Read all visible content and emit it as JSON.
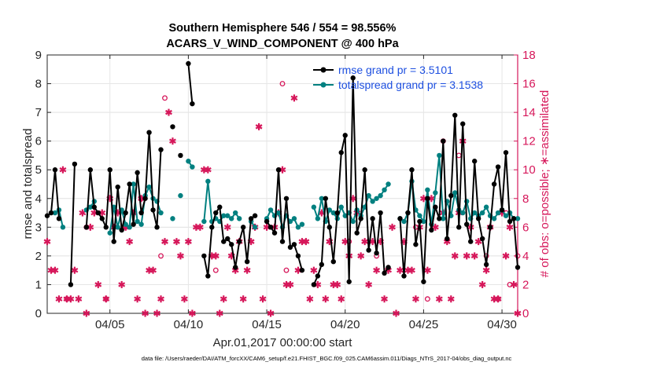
{
  "chart_data": {
    "type": "line",
    "title": [
      "Southern Hemisphere 546 / 554 = 98.556%",
      "ACARS_V_WIND_COMPONENT @ 400 hPa"
    ],
    "xlabel": "Apr.01,2017 00:00:00 start",
    "ylabel": "rmse and totalspread",
    "ylabel_right": "# of obs: o=possible; ∗=assimilated",
    "xlim": [
      1,
      31
    ],
    "ylim": [
      0,
      9
    ],
    "ylim_right": [
      0,
      18
    ],
    "x_ticks": [
      5,
      10,
      15,
      20,
      25,
      30
    ],
    "x_tick_labels": [
      "04/05",
      "04/10",
      "04/15",
      "04/20",
      "04/25",
      "04/30"
    ],
    "y_ticks": [
      0,
      1,
      2,
      3,
      4,
      5,
      6,
      7,
      8,
      9
    ],
    "y_tick_labels": [
      "0",
      "1",
      "2",
      "3",
      "4",
      "5",
      "6",
      "7",
      "8",
      "9"
    ],
    "y_ticks_right": [
      0,
      2,
      4,
      6,
      8,
      10,
      12,
      14,
      16,
      18
    ],
    "y_tick_labels_right": [
      "0",
      "2",
      "4",
      "6",
      "8",
      "10",
      "12",
      "14",
      "16",
      "18"
    ],
    "grid": true,
    "legend_position": "top-right",
    "legend": [
      "rmse grand pr = 3.5101",
      "totalspread grand pr = 3.1538"
    ],
    "colors": {
      "rmse": "#000000",
      "totalspread": "#008080",
      "obs": "#d6175a",
      "legend_text": "#1d4fe0"
    },
    "series": [
      {
        "name": "rmse",
        "x": [
          1.0,
          1.25,
          1.5,
          1.75,
          2.5,
          2.75,
          3.5,
          3.75,
          4.0,
          4.25,
          4.5,
          4.75,
          5.0,
          5.25,
          5.5,
          5.75,
          6.0,
          6.25,
          6.5,
          6.75,
          7.0,
          7.25,
          7.5,
          7.75,
          8.0,
          8.25,
          9.0,
          9.5,
          10.0,
          10.25,
          11.0,
          11.25,
          11.5,
          11.75,
          12.0,
          12.25,
          12.5,
          12.75,
          13.0,
          13.25,
          13.5,
          13.75,
          14.0,
          14.25,
          15.0,
          15.25,
          15.5,
          15.75,
          16.0,
          16.25,
          16.5,
          16.75,
          17.0,
          17.25,
          18.0,
          18.25,
          18.5,
          18.75,
          19.0,
          19.25,
          19.5,
          19.75,
          20.0,
          20.25,
          20.5,
          20.75,
          21.0,
          21.25,
          21.5,
          21.75,
          22.0,
          22.25,
          22.5,
          22.75,
          23.5,
          23.75,
          24.0,
          24.25,
          24.5,
          24.75,
          25.0,
          25.25,
          25.5,
          25.75,
          26.0,
          26.25,
          26.5,
          26.75,
          27.0,
          27.25,
          27.5,
          27.75,
          28.0,
          28.25,
          28.5,
          28.75,
          29.0,
          29.25,
          29.5,
          29.75,
          30.0,
          30.25,
          30.5,
          30.75,
          31.0
        ],
        "values": [
          3.4,
          3.5,
          5.0,
          3.3,
          1.0,
          5.2,
          3.0,
          5.0,
          3.7,
          3.5,
          3.3,
          3.0,
          5.0,
          2.5,
          4.4,
          2.9,
          3.5,
          4.5,
          3.1,
          4.9,
          3.5,
          4.0,
          6.3,
          3.6,
          3.0,
          5.7,
          6.5,
          5.5,
          8.7,
          7.3,
          2.0,
          1.3,
          3.0,
          3.5,
          3.7,
          2.5,
          2.6,
          2.4,
          1.6,
          2.5,
          3.0,
          1.8,
          3.3,
          3.4,
          3.2,
          3.0,
          2.8,
          5.0,
          2.5,
          4.0,
          2.3,
          2.4,
          2.0,
          1.5,
          1.0,
          1.3,
          1.7,
          4.0,
          3.0,
          1.8,
          3.5,
          5.6,
          6.2,
          1.1,
          8.2,
          2.8,
          3.3,
          5.0,
          2.2,
          3.3,
          2.1,
          3.5,
          1.4,
          1.6,
          3.3,
          1.3,
          3.5,
          5.0,
          2.4,
          3.2,
          1.1,
          4.0,
          2.9,
          3.7,
          3.3,
          6.0,
          2.6,
          4.1,
          6.9,
          3.0,
          6.6,
          3.1,
          2.5,
          5.3,
          3.3,
          2.6,
          1.7,
          3.0,
          4.5,
          5.1,
          3.6,
          5.6,
          3.2,
          3.3,
          1.6
        ]
      },
      {
        "name": "totalspread",
        "x": [
          1.5,
          1.75,
          2.0,
          3.5,
          3.75,
          4.0,
          5.0,
          5.25,
          5.5,
          5.75,
          6.0,
          6.25,
          6.5,
          6.75,
          7.0,
          7.25,
          7.5,
          7.75,
          8.0,
          8.25,
          9.0,
          9.5,
          10.0,
          10.25,
          11.0,
          11.25,
          11.5,
          11.75,
          12.0,
          12.25,
          12.5,
          12.75,
          13.0,
          13.25,
          14.0,
          14.25,
          15.0,
          15.25,
          15.5,
          15.75,
          16.0,
          16.25,
          16.5,
          16.75,
          17.0,
          17.25,
          18.0,
          18.25,
          18.5,
          18.75,
          19.0,
          19.25,
          19.5,
          19.75,
          20.0,
          20.25,
          20.5,
          20.75,
          21.0,
          21.25,
          21.5,
          21.75,
          22.0,
          22.25,
          22.5,
          22.75,
          23.5,
          23.75,
          24.0,
          24.25,
          24.5,
          24.75,
          25.0,
          25.25,
          25.5,
          25.75,
          26.0,
          26.25,
          26.5,
          26.75,
          27.0,
          27.25,
          27.5,
          27.75,
          28.0,
          28.25,
          28.5,
          28.75,
          29.0,
          29.25,
          29.5,
          29.75,
          30.0,
          30.25,
          30.5,
          30.75,
          31.0
        ],
        "values": [
          3.5,
          3.6,
          3.0,
          3.6,
          3.7,
          3.9,
          2.8,
          3.7,
          3.0,
          3.6,
          3.1,
          3.0,
          4.5,
          3.2,
          3.1,
          4.1,
          4.4,
          4.0,
          3.9,
          3.5,
          3.3,
          4.1,
          5.3,
          5.1,
          3.2,
          4.6,
          3.2,
          3.3,
          3.2,
          3.4,
          3.4,
          3.3,
          3.5,
          3.3,
          3.2,
          3.0,
          3.3,
          3.6,
          3.4,
          3.5,
          3.0,
          3.4,
          3.2,
          3.3,
          3.0,
          3.1,
          3.7,
          3.3,
          4.0,
          3.2,
          3.6,
          3.5,
          3.3,
          3.7,
          3.4,
          3.5,
          3.2,
          3.6,
          3.4,
          3.7,
          4.1,
          3.9,
          4.0,
          4.1,
          4.3,
          4.5,
          3.3,
          3.2,
          3.5,
          4.6,
          3.6,
          3.4,
          3.2,
          4.3,
          3.1,
          4.2,
          5.5,
          3.3,
          3.9,
          3.4,
          4.2,
          3.6,
          3.5,
          3.9,
          3.3,
          3.5,
          3.4,
          3.5,
          3.7,
          3.4,
          3.3,
          3.5,
          3.6,
          3.4,
          3.5,
          3.3,
          3.3
        ]
      },
      {
        "name": "obs_assimilated",
        "x": [
          1.0,
          1.25,
          1.5,
          1.75,
          2.0,
          2.25,
          2.5,
          2.75,
          3.0,
          3.25,
          3.5,
          3.75,
          4.0,
          4.25,
          4.5,
          4.75,
          5.0,
          5.25,
          5.5,
          5.75,
          6.0,
          6.25,
          6.5,
          6.75,
          7.0,
          7.25,
          7.5,
          7.75,
          8.0,
          8.25,
          8.5,
          8.75,
          9.0,
          9.25,
          9.5,
          9.75,
          10.0,
          10.25,
          10.5,
          10.75,
          11.0,
          11.25,
          11.5,
          11.75,
          12.0,
          12.25,
          12.5,
          12.75,
          13.0,
          13.25,
          13.5,
          13.75,
          14.0,
          14.25,
          14.5,
          14.75,
          15.0,
          15.25,
          15.5,
          15.75,
          16.0,
          16.25,
          16.5,
          16.75,
          17.0,
          17.25,
          17.5,
          17.75,
          18.0,
          18.25,
          18.5,
          18.75,
          19.0,
          19.25,
          19.5,
          19.75,
          20.0,
          20.25,
          20.5,
          20.75,
          21.0,
          21.25,
          21.5,
          21.75,
          22.0,
          22.25,
          22.5,
          22.75,
          23.0,
          23.25,
          23.5,
          23.75,
          24.0,
          24.25,
          24.5,
          24.75,
          25.0,
          25.25,
          25.5,
          25.75,
          26.0,
          26.25,
          26.5,
          26.75,
          27.0,
          27.25,
          27.5,
          27.75,
          28.0,
          28.25,
          28.5,
          28.75,
          29.0,
          29.25,
          29.5,
          29.75,
          30.0,
          30.25,
          30.5,
          30.75,
          31.0
        ],
        "values": [
          5,
          3,
          3,
          1,
          10,
          1,
          1,
          3,
          1,
          7,
          0,
          6,
          7,
          2,
          7,
          1,
          8,
          6,
          7,
          2,
          6,
          5,
          7,
          1,
          8,
          0,
          3,
          3,
          0,
          1,
          5,
          14,
          12,
          5,
          4,
          1,
          5,
          0,
          6,
          6,
          10,
          10,
          4,
          4,
          0,
          1,
          6,
          4,
          3,
          5,
          1,
          3,
          5,
          6,
          13,
          1,
          6,
          0,
          6,
          7,
          10,
          2,
          2,
          15,
          3,
          5,
          5,
          1,
          3,
          2,
          7,
          1,
          5,
          2,
          2,
          1,
          5,
          4,
          8,
          7,
          4,
          5,
          2,
          5,
          3,
          5,
          1,
          3,
          6,
          0,
          3,
          5,
          3,
          3,
          1,
          6,
          8,
          3,
          8,
          6,
          1,
          7,
          5,
          1,
          4,
          7,
          12,
          4,
          6,
          4,
          5,
          2,
          3,
          6,
          1,
          1,
          7,
          4,
          6,
          2,
          0
        ]
      },
      {
        "name": "obs_possible",
        "x": [
          2.25,
          3.5,
          4.75,
          6.0,
          7.0,
          8.25,
          8.5,
          11.75,
          16.0,
          16.25,
          20.25,
          22.0,
          24.5,
          25.25,
          26.25,
          27.25,
          29.0,
          29.25,
          29.75,
          30.25,
          30.5,
          31.0
        ],
        "values": [
          1,
          6,
          1,
          6,
          8,
          4,
          15,
          3,
          16,
          3,
          5,
          4,
          6,
          1,
          12,
          11,
          4,
          6,
          1,
          7,
          2,
          4
        ]
      }
    ]
  },
  "footnote": "data file: /Users/raeder/DAI/ATM_forcXX/CAM6_setup/f.e21.FHIST_BGC.f09_025.CAM6assim.011/Diags_NTrS_2017-04/obs_diag_output.nc"
}
